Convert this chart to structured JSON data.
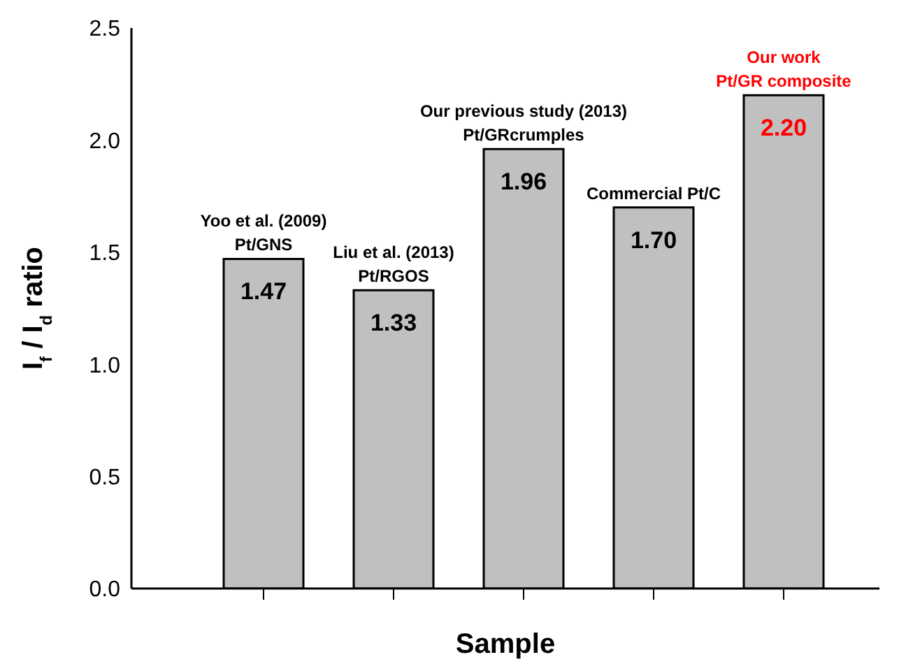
{
  "chart_data": {
    "type": "bar",
    "xlabel": "Sample",
    "ylabel": "I$_{f}$ / I$_{d}$ ratio",
    "categories": [
      "Yoo et al. (2009)\nPt/GNS",
      "Liu et al. (2013)\nPt/RGOS",
      "Our previous study (2013)\nPt/GRcrumples",
      "Commercial Pt/C",
      "Our work\nPt/GR composite"
    ],
    "values": [
      1.47,
      1.33,
      1.96,
      1.7,
      2.2
    ],
    "color": "#c0c0c0",
    "value_labels": [
      "1.47",
      "1.33",
      "1.96",
      "1.70",
      "2.20"
    ],
    "ylim": [
      0,
      2.5
    ],
    "yticks": [
      {
        "value": 0,
        "label": "0.0"
      },
      {
        "value": 0.5,
        "label": "0.5"
      },
      {
        "value": 1,
        "label": "1.0"
      },
      {
        "value": 1.5,
        "label": "1.5"
      },
      {
        "value": 2,
        "label": "2.0"
      },
      {
        "value": 2.5,
        "label": "2.5"
      }
    ],
    "grid": false,
    "legend": false
  }
}
